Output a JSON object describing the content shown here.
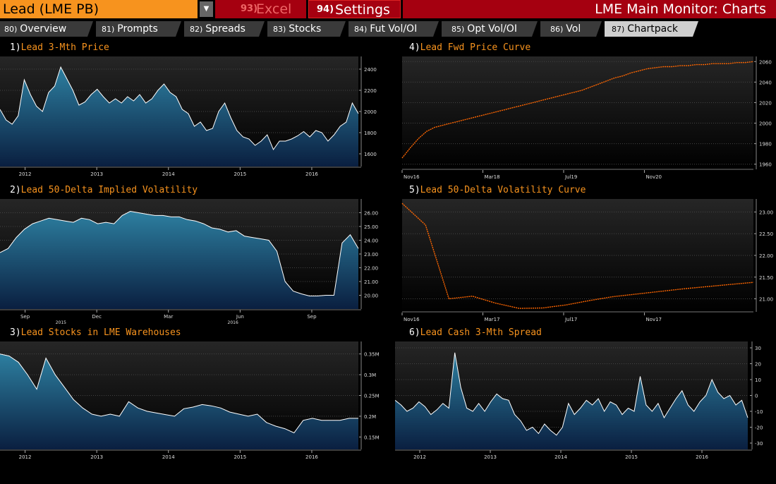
{
  "security": "Lead (LME PB)",
  "buttons": {
    "excel": {
      "num": "93)",
      "label": "Excel"
    },
    "settings": {
      "num": "94)",
      "label": "Settings"
    }
  },
  "title": "LME Main Monitor: Charts",
  "tabs": [
    {
      "num": "80)",
      "label": "Overview"
    },
    {
      "num": "81)",
      "label": "Prompts"
    },
    {
      "num": "82)",
      "label": "Spreads"
    },
    {
      "num": "83)",
      "label": "Stocks"
    },
    {
      "num": "84)",
      "label": "Fut Vol/OI"
    },
    {
      "num": "85)",
      "label": "Opt Vol/OI"
    },
    {
      "num": "86)",
      "label": "Vol"
    },
    {
      "num": "87)",
      "label": "Chartpack"
    }
  ],
  "active_tab": 7,
  "colors": {
    "accent": "#f7931e",
    "red": "#a50010",
    "area_top": "#2d7fa0",
    "area_bottom": "#0a1f40",
    "curve": "#ff6600"
  },
  "panels": [
    {
      "num": "1)",
      "title": "Lead 3-Mth Price"
    },
    {
      "num": "4)",
      "title": "Lead Fwd Price Curve"
    },
    {
      "num": "2)",
      "title": "Lead 50-Delta Implied Volatility"
    },
    {
      "num": "5)",
      "title": "Lead 50-Delta Volatility Curve"
    },
    {
      "num": "3)",
      "title": "Lead Stocks in LME Warehouses"
    },
    {
      "num": "6)",
      "title": "Lead Cash 3-Mth Spread"
    }
  ],
  "chart_data": [
    {
      "id": "c1",
      "type": "area",
      "title": "Lead 3-Mth Price",
      "x_ticks": [
        "2012",
        "2013",
        "2014",
        "2015",
        "2016"
      ],
      "y_ticks": [
        "2400",
        "2200",
        "2000",
        "1800",
        "1600"
      ],
      "ylim": [
        1480,
        2520
      ],
      "values": [
        2020,
        1920,
        1880,
        1960,
        2300,
        2160,
        2050,
        2000,
        2180,
        2240,
        2420,
        2310,
        2200,
        2060,
        2090,
        2160,
        2210,
        2140,
        2080,
        2120,
        2080,
        2140,
        2100,
        2160,
        2080,
        2120,
        2200,
        2260,
        2180,
        2140,
        2020,
        1980,
        1860,
        1900,
        1820,
        1840,
        2000,
        2080,
        1940,
        1820,
        1760,
        1740,
        1680,
        1720,
        1780,
        1640,
        1720,
        1720,
        1740,
        1770,
        1810,
        1760,
        1820,
        1800,
        1720,
        1780,
        1860,
        1900,
        2080,
        1980
      ]
    },
    {
      "id": "c4",
      "type": "line",
      "title": "Lead Fwd Price Curve",
      "x_ticks": [
        "Nov16",
        "Mar18",
        "Jul19",
        "Nov20"
      ],
      "y_ticks": [
        "2060",
        "2040",
        "2020",
        "2000",
        "1980",
        "1960"
      ],
      "ylim": [
        1955,
        2065
      ],
      "values": [
        1966,
        1976,
        1985,
        1992,
        1996,
        1998,
        2000,
        2002,
        2004,
        2006,
        2008,
        2010,
        2012,
        2014,
        2016,
        2018,
        2020,
        2022,
        2024,
        2026,
        2028,
        2030,
        2032,
        2035,
        2038,
        2041,
        2044,
        2046,
        2049,
        2051,
        2053,
        2054,
        2055,
        2055,
        2056,
        2056,
        2057,
        2057,
        2058,
        2058,
        2058,
        2059,
        2059,
        2060
      ]
    },
    {
      "id": "c2",
      "type": "area",
      "title": "Lead 50-Delta Implied Volatility",
      "x_ticks": [
        "Sep",
        "Dec",
        "Mar",
        "Jun",
        "Sep"
      ],
      "x_sub_ticks": [
        "2015",
        "2016"
      ],
      "y_ticks": [
        "26.00",
        "25.00",
        "24.00",
        "23.00",
        "22.00",
        "21.00",
        "20.00"
      ],
      "ylim": [
        19.0,
        27.0
      ],
      "values": [
        23.1,
        23.4,
        24.2,
        24.8,
        25.2,
        25.4,
        25.6,
        25.5,
        25.4,
        25.3,
        25.6,
        25.5,
        25.2,
        25.3,
        25.2,
        25.8,
        26.1,
        26.0,
        25.9,
        25.8,
        25.8,
        25.7,
        25.7,
        25.5,
        25.4,
        25.2,
        24.9,
        24.8,
        24.6,
        24.7,
        24.3,
        24.2,
        24.1,
        24.0,
        23.2,
        21.0,
        20.3,
        20.1,
        19.95,
        19.95,
        20.0,
        20.0,
        23.8,
        24.4,
        23.4
      ]
    },
    {
      "id": "c5",
      "type": "line",
      "title": "Lead 50-Delta Volatility Curve",
      "x_ticks": [
        "Nov16",
        "Mar17",
        "Jul17",
        "Nov17"
      ],
      "y_ticks": [
        "23.00",
        "22.50",
        "22.00",
        "21.50",
        "21.00"
      ],
      "ylim": [
        20.7,
        23.3
      ],
      "values": [
        23.2,
        22.7,
        21.0,
        21.06,
        20.9,
        20.78,
        20.79,
        20.86,
        20.96,
        21.05,
        21.11,
        21.17,
        21.23,
        21.28,
        21.33,
        21.38
      ]
    },
    {
      "id": "c3",
      "type": "area",
      "title": "Lead Stocks in LME Warehouses",
      "x_ticks": [
        "2012",
        "2013",
        "2014",
        "2015",
        "2016"
      ],
      "y_ticks": [
        "0.35M",
        "0.3M",
        "0.25M",
        "0.2M",
        "0.15M"
      ],
      "ylim": [
        0.12,
        0.38
      ],
      "values": [
        0.35,
        0.345,
        0.33,
        0.3,
        0.265,
        0.34,
        0.3,
        0.27,
        0.24,
        0.22,
        0.205,
        0.2,
        0.205,
        0.2,
        0.235,
        0.22,
        0.212,
        0.208,
        0.204,
        0.2,
        0.218,
        0.222,
        0.228,
        0.225,
        0.22,
        0.21,
        0.205,
        0.2,
        0.205,
        0.185,
        0.176,
        0.17,
        0.16,
        0.19,
        0.195,
        0.19,
        0.19,
        0.19,
        0.195,
        0.195
      ]
    },
    {
      "id": "c6",
      "type": "area",
      "title": "Lead Cash 3-Mth Spread",
      "x_ticks": [
        "2012",
        "2013",
        "2014",
        "2015",
        "2016"
      ],
      "y_ticks": [
        "30",
        "20",
        "10",
        "0",
        "-10",
        "-20",
        "-30"
      ],
      "ylim": [
        -34,
        34
      ],
      "values": [
        -3,
        -6,
        -10,
        -8,
        -4,
        -7,
        -12,
        -9,
        -5,
        -8,
        27,
        5,
        -8,
        -10,
        -5,
        -10,
        -4,
        1,
        -2,
        -3,
        -12,
        -16,
        -22,
        -20,
        -24,
        -18,
        -22,
        -25,
        -20,
        -5,
        -12,
        -8,
        -3,
        -6,
        -2,
        -10,
        -4,
        -6,
        -12,
        -8,
        -10,
        12,
        -6,
        -10,
        -5,
        -14,
        -8,
        -2,
        3,
        -6,
        -10,
        -4,
        0,
        10,
        2,
        -2,
        0,
        -6,
        -3,
        -14
      ]
    }
  ]
}
